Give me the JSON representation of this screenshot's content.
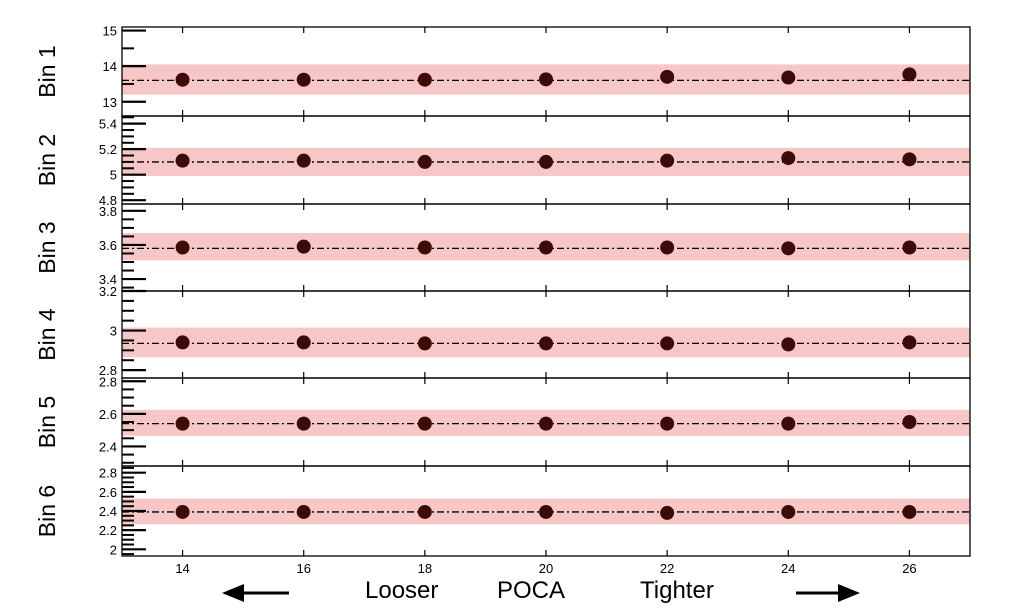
{
  "chart_data": {
    "type": "scatter",
    "x": [
      14,
      16,
      18,
      20,
      22,
      24,
      26
    ],
    "xlim": [
      13,
      27
    ],
    "x_ticks": [
      "14",
      "16",
      "18",
      "20",
      "22",
      "24",
      "26"
    ],
    "bottom_labels": {
      "looser": "Looser",
      "poca": "POCA",
      "tighter": "Tighter"
    },
    "colors": {
      "marker": "#3d0a0a",
      "band": "#f7c6c6",
      "reference_line": "#000000"
    },
    "panels": [
      {
        "label": "Bin 1",
        "ylim": [
          12.6,
          15.1
        ],
        "yticks": [
          13,
          14,
          15
        ],
        "ytick_labels": [
          "13",
          "14",
          "15"
        ],
        "minor_step": 0.5,
        "reference": 13.6,
        "band": [
          13.2,
          14.05
        ],
        "values": [
          13.62,
          13.62,
          13.62,
          13.63,
          13.7,
          13.68,
          13.77
        ]
      },
      {
        "label": "Bin 2",
        "ylim": [
          4.77,
          5.46
        ],
        "yticks": [
          4.8,
          5.0,
          5.2,
          5.4
        ],
        "ytick_labels": [
          "4.8",
          "5",
          "5.2",
          "5.4"
        ],
        "minor_step": 0.05,
        "reference": 5.1,
        "band": [
          4.99,
          5.21
        ],
        "values": [
          5.11,
          5.11,
          5.1,
          5.1,
          5.11,
          5.13,
          5.12
        ]
      },
      {
        "label": "Bin 3",
        "ylim": [
          3.33,
          3.84
        ],
        "yticks": [
          3.4,
          3.6,
          3.8
        ],
        "ytick_labels": [
          "3.4",
          "3.6",
          "3.8"
        ],
        "minor_step": 0.05,
        "reference": 3.58,
        "band": [
          3.51,
          3.67
        ],
        "values": [
          3.585,
          3.59,
          3.585,
          3.585,
          3.585,
          3.58,
          3.585
        ]
      },
      {
        "label": "Bin 4",
        "ylim": [
          2.76,
          3.2
        ],
        "yticks": [
          2.8,
          3.0,
          3.2
        ],
        "ytick_labels": [
          "2.8",
          "3",
          "3.2"
        ],
        "minor_step": 0.05,
        "reference": 2.935,
        "band": [
          2.865,
          3.015
        ],
        "values": [
          2.94,
          2.94,
          2.935,
          2.935,
          2.935,
          2.93,
          2.94
        ]
      },
      {
        "label": "Bin 5",
        "ylim": [
          2.28,
          2.82
        ],
        "yticks": [
          2.4,
          2.6,
          2.8
        ],
        "ytick_labels": [
          "2.4",
          "2.6",
          "2.8"
        ],
        "minor_step": 0.05,
        "reference": 2.54,
        "band": [
          2.465,
          2.625
        ],
        "values": [
          2.54,
          2.54,
          2.54,
          2.54,
          2.54,
          2.54,
          2.55
        ]
      },
      {
        "label": "Bin 6",
        "ylim": [
          1.93,
          2.87
        ],
        "yticks": [
          2.0,
          2.2,
          2.4,
          2.6,
          2.8
        ],
        "ytick_labels": [
          "2",
          "2.2",
          "2.4",
          "2.6",
          "2.8"
        ],
        "minor_step": 0.05,
        "reference": 2.39,
        "band": [
          2.26,
          2.53
        ],
        "values": [
          2.39,
          2.39,
          2.39,
          2.39,
          2.38,
          2.39,
          2.39
        ]
      }
    ]
  }
}
